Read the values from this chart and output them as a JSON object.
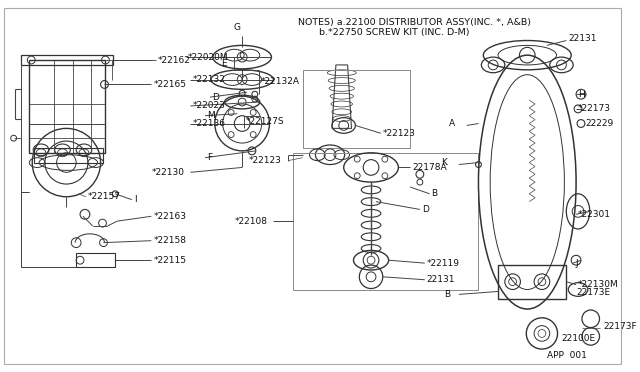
{
  "bg_color": "#ffffff",
  "border_color": "#cccccc",
  "notes_line1": "NOTES) a.22100 DISTRIBUTOR ASSY(INC. *, A&B)",
  "notes_line2": "       b.*22750 SCREW KIT (INC. D-M)",
  "footer_text": "APP  001",
  "line_color": "#444444",
  "text_color": "#111111",
  "font_size_label": 6.5,
  "font_size_notes": 7.0
}
